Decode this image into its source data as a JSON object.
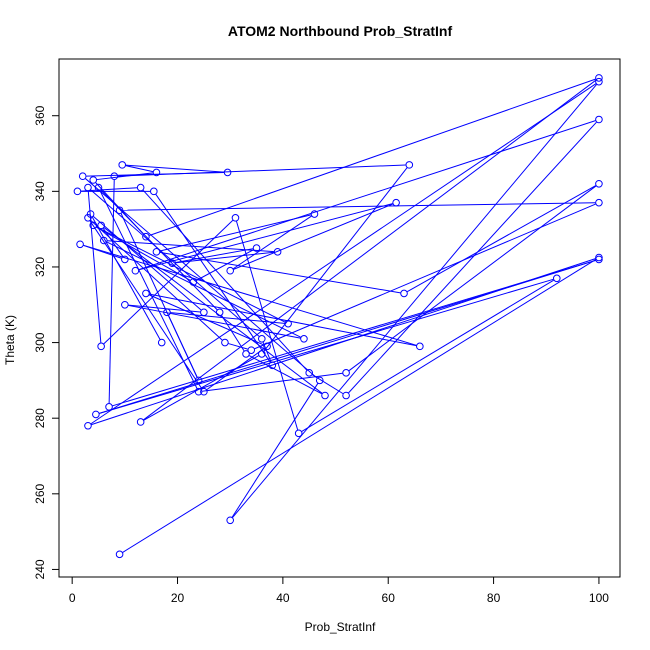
{
  "chart_data": {
    "type": "scatter",
    "title": "ATOM2 Northbound Prob_StratInf",
    "xlabel": "Prob_StratInf",
    "ylabel": "Theta (K)",
    "xlim": [
      -2.5,
      104
    ],
    "ylim": [
      238,
      375
    ],
    "xticks": [
      0,
      20,
      40,
      60,
      80,
      100
    ],
    "yticks": [
      240,
      260,
      280,
      300,
      320,
      340,
      360
    ],
    "grid": false,
    "legend": "none",
    "marker": "open-circle",
    "connected": true,
    "color": "#0000ff",
    "series": [
      {
        "values": [
          {
            "x": 9,
            "y": 244
          },
          {
            "x": 100,
            "y": 322.5
          },
          {
            "x": 3,
            "y": 278
          },
          {
            "x": 100,
            "y": 369
          },
          {
            "x": 30,
            "y": 253
          },
          {
            "x": 47,
            "y": 290
          },
          {
            "x": 2,
            "y": 344
          },
          {
            "x": 29.5,
            "y": 345
          },
          {
            "x": 9.5,
            "y": 347
          },
          {
            "x": 16,
            "y": 345
          },
          {
            "x": 4,
            "y": 343
          },
          {
            "x": 14,
            "y": 328
          },
          {
            "x": 100,
            "y": 370
          },
          {
            "x": 13,
            "y": 279
          },
          {
            "x": 36,
            "y": 297
          },
          {
            "x": 64,
            "y": 347
          },
          {
            "x": 8,
            "y": 344
          },
          {
            "x": 7,
            "y": 283
          },
          {
            "x": 100,
            "y": 322
          },
          {
            "x": 4.5,
            "y": 281
          },
          {
            "x": 92,
            "y": 317
          },
          {
            "x": 43,
            "y": 276
          },
          {
            "x": 31,
            "y": 333
          },
          {
            "x": 5.5,
            "y": 299
          },
          {
            "x": 3,
            "y": 341
          },
          {
            "x": 36,
            "y": 301
          },
          {
            "x": 38,
            "y": 294
          },
          {
            "x": 15.5,
            "y": 340
          },
          {
            "x": 1,
            "y": 340
          },
          {
            "x": 13,
            "y": 341
          },
          {
            "x": 45,
            "y": 292
          },
          {
            "x": 52,
            "y": 286
          },
          {
            "x": 100,
            "y": 359
          },
          {
            "x": 12,
            "y": 319
          },
          {
            "x": 61.5,
            "y": 337
          },
          {
            "x": 30,
            "y": 319
          },
          {
            "x": 46,
            "y": 334
          },
          {
            "x": 16,
            "y": 324
          },
          {
            "x": 63,
            "y": 313
          },
          {
            "x": 100,
            "y": 342
          },
          {
            "x": 52,
            "y": 292
          },
          {
            "x": 24,
            "y": 287
          },
          {
            "x": 5,
            "y": 341
          },
          {
            "x": 28,
            "y": 308
          },
          {
            "x": 33,
            "y": 297
          },
          {
            "x": 48,
            "y": 286
          },
          {
            "x": 5.5,
            "y": 331
          },
          {
            "x": 10,
            "y": 322
          },
          {
            "x": 1.5,
            "y": 326
          },
          {
            "x": 66,
            "y": 299
          },
          {
            "x": 14,
            "y": 313
          },
          {
            "x": 37,
            "y": 299
          },
          {
            "x": 25,
            "y": 287
          },
          {
            "x": 3,
            "y": 333
          },
          {
            "x": 29,
            "y": 300
          },
          {
            "x": 34,
            "y": 298
          },
          {
            "x": 100,
            "y": 337
          },
          {
            "x": 9,
            "y": 335
          },
          {
            "x": 24,
            "y": 290
          },
          {
            "x": 18,
            "y": 308
          },
          {
            "x": 41,
            "y": 305
          },
          {
            "x": 4,
            "y": 331
          },
          {
            "x": 23,
            "y": 316
          },
          {
            "x": 35,
            "y": 325
          },
          {
            "x": 19,
            "y": 321
          },
          {
            "x": 39,
            "y": 324
          },
          {
            "x": 6,
            "y": 327
          },
          {
            "x": 44,
            "y": 301
          },
          {
            "x": 10,
            "y": 310
          },
          {
            "x": 25,
            "y": 308
          },
          {
            "x": 3.5,
            "y": 334
          },
          {
            "x": 17,
            "y": 300
          }
        ]
      }
    ]
  }
}
